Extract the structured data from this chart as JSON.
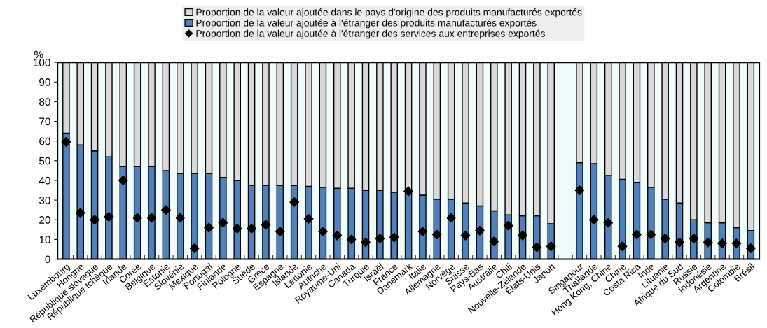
{
  "chart_data": {
    "type": "bar",
    "stacked": true,
    "ylabel": "%",
    "ylim": [
      0,
      100
    ],
    "yticks": [
      0,
      10,
      20,
      30,
      40,
      50,
      60,
      70,
      80,
      90,
      100
    ],
    "legend": "top",
    "grid": false,
    "categories": [
      "Luxembourg",
      "Hongrie",
      "République slovaque",
      "République tchèque",
      "Irlande",
      "Corée",
      "Belgique",
      "Estonie",
      "Slovénie",
      "Mexique",
      "Portugal",
      "Finlande",
      "Pologne",
      "Suède",
      "Grèce",
      "Espagne",
      "Islande",
      "Lettonie",
      "Autriche",
      "Royaume-Uni",
      "Canada",
      "Turquie",
      "Israël",
      "France",
      "Danemark",
      "Italie",
      "Allemagne",
      "Norvège",
      "Suisse",
      "Pays-Bas",
      "Australie",
      "Chili",
      "Nouvelle-Zélande",
      "États-Unis",
      "Japon",
      null,
      "Singapour",
      "Thaïlande",
      "Hong Kong, Chine",
      "Chine",
      "Costa Rica",
      "Inde",
      "Lituanie",
      "Afrique du Sud",
      "Russie",
      "Indonésie",
      "Argentine",
      "Colombie",
      "Brésil"
    ],
    "series": [
      {
        "name": "Proportion de la valeur ajoutée à l'étranger des produits manufacturés exportés",
        "color": "#4f81bd",
        "values": [
          64,
          58,
          55,
          52,
          47,
          47,
          47,
          45,
          43.5,
          43.5,
          43.5,
          41.5,
          40,
          37.5,
          37.5,
          37.5,
          37.5,
          37,
          36.5,
          36,
          36,
          35,
          35,
          34,
          35,
          32.5,
          30.5,
          30.5,
          28.5,
          27,
          24.5,
          22.5,
          22,
          22,
          18,
          null,
          49,
          48.5,
          42.5,
          40.5,
          39,
          36.5,
          30.5,
          28.5,
          20,
          18.5,
          18.5,
          16,
          14.5
        ]
      },
      {
        "name": "Proportion de la valeur ajoutée dans le pays d'origine des produits manufacturés exportés",
        "color": "#d9d9d9",
        "values": [
          36,
          42,
          45,
          48,
          53,
          53,
          53,
          55,
          56.5,
          56.5,
          56.5,
          58.5,
          60,
          62.5,
          62.5,
          62.5,
          62.5,
          63,
          63.5,
          64,
          64,
          65,
          65,
          66,
          65,
          67.5,
          69.5,
          69.5,
          71.5,
          73,
          75.5,
          77.5,
          78,
          78,
          82,
          null,
          51,
          51.5,
          57.5,
          59.5,
          61,
          63.5,
          69.5,
          71.5,
          80,
          81.5,
          81.5,
          84,
          85.5
        ]
      },
      {
        "name": "Proportion de la valeur ajoutée à l'étranger des services aux entreprises exportés",
        "type": "scatter",
        "marker": "diamond",
        "color": "#000000",
        "values": [
          59.5,
          23.5,
          20,
          21.5,
          40,
          21,
          21,
          25,
          21,
          5.5,
          16,
          18.5,
          15.5,
          15.5,
          17.5,
          14,
          29,
          20.5,
          14,
          12,
          10,
          8.5,
          10.5,
          11,
          34.5,
          14,
          12.5,
          21,
          12,
          14.5,
          9,
          17,
          12,
          6,
          6.5,
          null,
          35,
          20,
          18.5,
          6.5,
          12.5,
          12.5,
          10.5,
          8.5,
          10.5,
          8.5,
          8,
          8,
          5.5
        ]
      }
    ]
  }
}
